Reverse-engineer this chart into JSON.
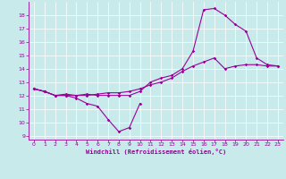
{
  "xlabel": "Windchill (Refroidissement éolien,°C)",
  "bg_color": "#c8eaea",
  "line_color": "#990099",
  "grid_color": "#ffffff",
  "xlim": [
    -0.5,
    23.5
  ],
  "ylim": [
    8.7,
    19.0
  ],
  "yticks": [
    9,
    10,
    11,
    12,
    13,
    14,
    15,
    16,
    17,
    18
  ],
  "xticks": [
    0,
    1,
    2,
    3,
    4,
    5,
    6,
    7,
    8,
    9,
    10,
    11,
    12,
    13,
    14,
    15,
    16,
    17,
    18,
    19,
    20,
    21,
    22,
    23
  ],
  "series1": [
    [
      0,
      12.5
    ],
    [
      1,
      12.3
    ],
    [
      2,
      12.0
    ],
    [
      3,
      12.0
    ],
    [
      4,
      11.8
    ],
    [
      5,
      11.4
    ],
    [
      6,
      11.2
    ],
    [
      7,
      10.2
    ],
    [
      8,
      9.3
    ],
    [
      9,
      9.6
    ],
    [
      10,
      11.4
    ]
  ],
  "series2": [
    [
      0,
      12.5
    ],
    [
      1,
      12.3
    ],
    [
      2,
      12.0
    ],
    [
      3,
      12.1
    ],
    [
      4,
      12.0
    ],
    [
      5,
      12.1
    ],
    [
      6,
      12.0
    ],
    [
      7,
      12.0
    ],
    [
      8,
      12.0
    ],
    [
      9,
      12.0
    ],
    [
      10,
      12.3
    ],
    [
      11,
      13.0
    ],
    [
      12,
      13.3
    ],
    [
      13,
      13.5
    ],
    [
      14,
      14.0
    ],
    [
      15,
      15.3
    ],
    [
      16,
      18.4
    ],
    [
      17,
      18.5
    ],
    [
      18,
      18.0
    ],
    [
      19,
      17.3
    ],
    [
      20,
      16.8
    ],
    [
      21,
      14.8
    ],
    [
      22,
      14.3
    ],
    [
      23,
      14.2
    ]
  ],
  "series3": [
    [
      0,
      12.5
    ],
    [
      1,
      12.3
    ],
    [
      2,
      12.0
    ],
    [
      3,
      12.0
    ],
    [
      4,
      12.0
    ],
    [
      5,
      12.0
    ],
    [
      6,
      12.1
    ],
    [
      7,
      12.2
    ],
    [
      8,
      12.2
    ],
    [
      9,
      12.3
    ],
    [
      10,
      12.5
    ],
    [
      11,
      12.8
    ],
    [
      12,
      13.0
    ],
    [
      13,
      13.3
    ],
    [
      14,
      13.8
    ],
    [
      15,
      14.2
    ],
    [
      16,
      14.5
    ],
    [
      17,
      14.8
    ],
    [
      18,
      14.0
    ],
    [
      19,
      14.2
    ],
    [
      20,
      14.3
    ],
    [
      21,
      14.3
    ],
    [
      22,
      14.2
    ],
    [
      23,
      14.2
    ]
  ]
}
